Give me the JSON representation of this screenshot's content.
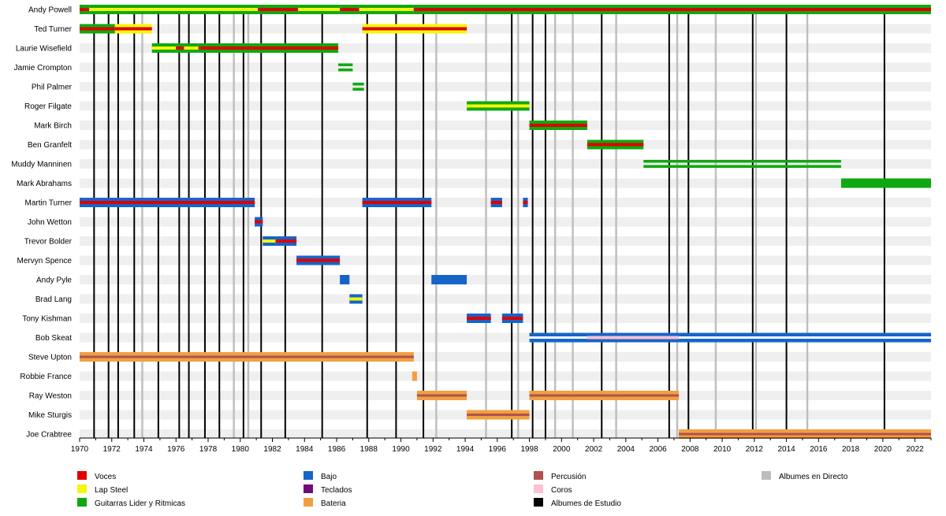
{
  "chart_data": {
    "type": "timeline",
    "x_range": [
      1970,
      2023
    ],
    "tick_years": [
      1970,
      1972,
      1974,
      1976,
      1978,
      1980,
      1982,
      1984,
      1986,
      1988,
      1990,
      1992,
      1994,
      1996,
      1998,
      2000,
      2002,
      2004,
      2006,
      2008,
      2010,
      2012,
      2014,
      2016,
      2018,
      2020,
      2022
    ],
    "members": [
      {
        "name": "Andy Powell",
        "segments": [
          {
            "start": 1970.0,
            "end": 1970.6,
            "roles": [
              "guitar",
              "vocals"
            ]
          },
          {
            "start": 1970.6,
            "end": 1981.1,
            "roles": [
              "guitar",
              "lapsteel"
            ]
          },
          {
            "start": 1981.1,
            "end": 1983.6,
            "roles": [
              "guitar",
              "vocals"
            ]
          },
          {
            "start": 1983.6,
            "end": 1986.2,
            "roles": [
              "guitar",
              "lapsteel"
            ]
          },
          {
            "start": 1986.2,
            "end": 1987.4,
            "roles": [
              "guitar",
              "vocals"
            ]
          },
          {
            "start": 1987.4,
            "end": 1990.8,
            "roles": [
              "guitar",
              "lapsteel"
            ]
          },
          {
            "start": 1990.8,
            "end": 2023.0,
            "roles": [
              "guitar",
              "vocals"
            ]
          }
        ]
      },
      {
        "name": "Ted Turner",
        "segments": [
          {
            "start": 1970.0,
            "end": 1972.2,
            "roles": [
              "guitar",
              "vocals"
            ]
          },
          {
            "start": 1972.2,
            "end": 1974.5,
            "roles": [
              "lapsteel",
              "vocals"
            ]
          },
          {
            "start": 1987.6,
            "end": 1994.1,
            "roles": [
              "lapsteel",
              "vocals"
            ]
          }
        ]
      },
      {
        "name": "Laurie Wisefield",
        "segments": [
          {
            "start": 1974.5,
            "end": 1976.0,
            "roles": [
              "guitar",
              "lapsteel"
            ]
          },
          {
            "start": 1976.0,
            "end": 1976.5,
            "roles": [
              "guitar",
              "vocals"
            ]
          },
          {
            "start": 1976.5,
            "end": 1977.4,
            "roles": [
              "guitar",
              "lapsteel"
            ]
          },
          {
            "start": 1977.4,
            "end": 1986.1,
            "roles": [
              "guitar",
              "vocals"
            ]
          }
        ]
      },
      {
        "name": "Jamie Crompton",
        "segments": [
          {
            "start": 1986.1,
            "end": 1987.0,
            "roles": [
              "guitar"
            ]
          }
        ]
      },
      {
        "name": "Phil Palmer",
        "segments": [
          {
            "start": 1987.0,
            "end": 1987.7,
            "roles": [
              "guitar"
            ]
          }
        ]
      },
      {
        "name": "Roger Filgate",
        "segments": [
          {
            "start": 1994.1,
            "end": 1998.0,
            "roles": [
              "guitar",
              "lapsteel"
            ]
          }
        ]
      },
      {
        "name": "Mark Birch",
        "segments": [
          {
            "start": 1998.0,
            "end": 2001.6,
            "roles": [
              "guitar",
              "vocals"
            ]
          }
        ]
      },
      {
        "name": "Ben Granfelt",
        "segments": [
          {
            "start": 2001.6,
            "end": 2005.1,
            "roles": [
              "guitar",
              "vocals"
            ]
          }
        ]
      },
      {
        "name": "Muddy Manninen",
        "segments": [
          {
            "start": 2005.1,
            "end": 2017.4,
            "roles": [
              "guitar"
            ]
          }
        ]
      },
      {
        "name": "Mark Abrahams",
        "segments": [
          {
            "start": 2017.4,
            "end": 2023.0,
            "roles": [
              "guitar"
            ]
          }
        ]
      },
      {
        "name": "Martin Turner",
        "segments": [
          {
            "start": 1970.0,
            "end": 1980.9,
            "roles": [
              "bass",
              "vocals"
            ]
          },
          {
            "start": 1987.6,
            "end": 1991.9,
            "roles": [
              "bass",
              "vocals"
            ]
          },
          {
            "start": 1995.6,
            "end": 1996.3,
            "roles": [
              "bass",
              "vocals"
            ]
          },
          {
            "start": 1997.6,
            "end": 1997.9,
            "roles": [
              "bass",
              "vocals"
            ]
          }
        ]
      },
      {
        "name": "John Wetton",
        "segments": [
          {
            "start": 1980.9,
            "end": 1981.4,
            "roles": [
              "bass",
              "vocals"
            ]
          }
        ]
      },
      {
        "name": "Trevor Bolder",
        "segments": [
          {
            "start": 1981.4,
            "end": 1982.2,
            "roles": [
              "bass",
              "lapsteel"
            ]
          },
          {
            "start": 1982.2,
            "end": 1983.5,
            "roles": [
              "bass",
              "vocals"
            ]
          }
        ]
      },
      {
        "name": "Mervyn Spence",
        "segments": [
          {
            "start": 1983.5,
            "end": 1986.2,
            "roles": [
              "bass",
              "vocals"
            ]
          }
        ]
      },
      {
        "name": "Andy Pyle",
        "segments": [
          {
            "start": 1986.2,
            "end": 1986.8,
            "roles": [
              "bass"
            ]
          },
          {
            "start": 1991.9,
            "end": 1994.1,
            "roles": [
              "bass"
            ]
          }
        ]
      },
      {
        "name": "Brad Lang",
        "segments": [
          {
            "start": 1986.8,
            "end": 1987.6,
            "roles": [
              "bass",
              "lapsteel"
            ]
          }
        ]
      },
      {
        "name": "Tony Kishman",
        "segments": [
          {
            "start": 1994.1,
            "end": 1995.6,
            "roles": [
              "bass",
              "vocals"
            ]
          },
          {
            "start": 1996.3,
            "end": 1997.6,
            "roles": [
              "bass",
              "vocals"
            ]
          }
        ]
      },
      {
        "name": "Bob Skeat",
        "segments": [
          {
            "start": 1998.0,
            "end": 2001.6,
            "roles": [
              "bass"
            ]
          },
          {
            "start": 2001.6,
            "end": 2007.3,
            "roles": [
              "bass",
              "backing"
            ]
          },
          {
            "start": 2007.3,
            "end": 2023.0,
            "roles": [
              "bass"
            ]
          }
        ]
      },
      {
        "name": "Steve Upton",
        "segments": [
          {
            "start": 1970.0,
            "end": 1990.8,
            "roles": [
              "drums",
              "percussion"
            ]
          }
        ]
      },
      {
        "name": "Robbie France",
        "segments": [
          {
            "start": 1990.7,
            "end": 1991.0,
            "roles": [
              "drums"
            ]
          }
        ]
      },
      {
        "name": "Ray Weston",
        "segments": [
          {
            "start": 1991.0,
            "end": 1994.1,
            "roles": [
              "drums",
              "percussion"
            ]
          },
          {
            "start": 1998.0,
            "end": 2007.3,
            "roles": [
              "drums",
              "percussion"
            ]
          }
        ]
      },
      {
        "name": "Mike Sturgis",
        "segments": [
          {
            "start": 1994.1,
            "end": 1998.0,
            "roles": [
              "drums",
              "percussion"
            ]
          }
        ]
      },
      {
        "name": "Joe Crabtree",
        "segments": [
          {
            "start": 2007.3,
            "end": 2023.0,
            "roles": [
              "drums",
              "percussion"
            ]
          }
        ]
      }
    ],
    "studio_albums": [
      1970.9,
      1971.8,
      1972.4,
      1973.4,
      1974.9,
      1976.2,
      1976.8,
      1977.8,
      1978.7,
      1980.2,
      1981.3,
      1982.8,
      1985.1,
      1987.9,
      1989.7,
      1991.4,
      1996.9,
      1998.2,
      1999.0,
      2002.5,
      2006.7,
      2007.9,
      2011.9,
      2014.0,
      2020.1
    ],
    "live_albums": [
      1973.9,
      1979.6,
      1980.5,
      1992.2,
      1995.3,
      1997.3,
      1999.6,
      2000.7,
      2003.4,
      2007.2,
      2009.6,
      2012.1,
      2015.3
    ],
    "colors": {
      "vocals": "#e00000",
      "lapsteel": "#f4f80a",
      "guitar": "#10a810",
      "bass": "#1565c8",
      "keyboards": "#6f0e76",
      "drums": "#f0a040",
      "percussion": "#b05050",
      "backing": "#ffc0d0",
      "studio": "#000000",
      "live": "#bdbdbd",
      "row_stripe": "#efefef"
    },
    "legend": [
      {
        "key": "vocals",
        "label": "Voces"
      },
      {
        "key": "lapsteel",
        "label": "Lap Steel"
      },
      {
        "key": "guitar",
        "label": "Guitarras Lider y Ritmicas"
      },
      {
        "key": "bass",
        "label": "Bajo"
      },
      {
        "key": "keyboards",
        "label": "Teclados"
      },
      {
        "key": "drums",
        "label": "Bateria"
      },
      {
        "key": "percussion",
        "label": "Percusión"
      },
      {
        "key": "backing",
        "label": "Coros"
      },
      {
        "key": "studio",
        "label": "Albumes de Estudio"
      },
      {
        "key": "live",
        "label": "Albumes en Directo"
      }
    ]
  }
}
